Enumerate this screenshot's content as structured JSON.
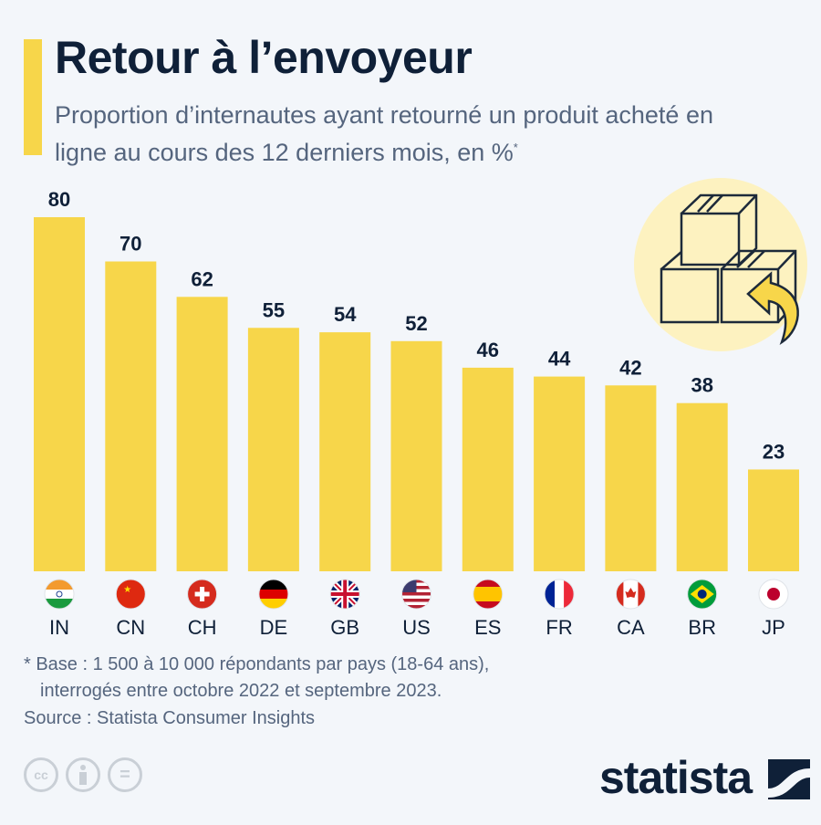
{
  "title": "Retour à l’envoyeur",
  "subtitle": "Proportion d’internautes ayant retourné un produit acheté en ligne au cours des 12 derniers mois, en %",
  "subtitle_mark": "*",
  "chart_data": {
    "type": "bar",
    "title": "Retour à l’envoyeur",
    "categories": [
      "IN",
      "CN",
      "CH",
      "DE",
      "GB",
      "US",
      "ES",
      "FR",
      "CA",
      "BR",
      "JP"
    ],
    "values": [
      80,
      70,
      62,
      55,
      54,
      52,
      46,
      44,
      42,
      38,
      23
    ],
    "ylim": [
      0,
      80
    ],
    "grid": false,
    "bar_color": "#f7d64a",
    "label_color": "#0f2038"
  },
  "footnote": {
    "line1": "* Base : 1 500 à 10 000 répondants par pays (18-64 ans),",
    "line2": "interrogés entre octobre 2022 et septembre 2023."
  },
  "source": "Source : Statista Consumer Insights",
  "license_icons": [
    "cc-icon",
    "by-icon",
    "nd-icon"
  ],
  "license_labels": {
    "cc": "cc",
    "eq": "="
  },
  "logo": "statista",
  "illustration": "boxes-return-icon"
}
